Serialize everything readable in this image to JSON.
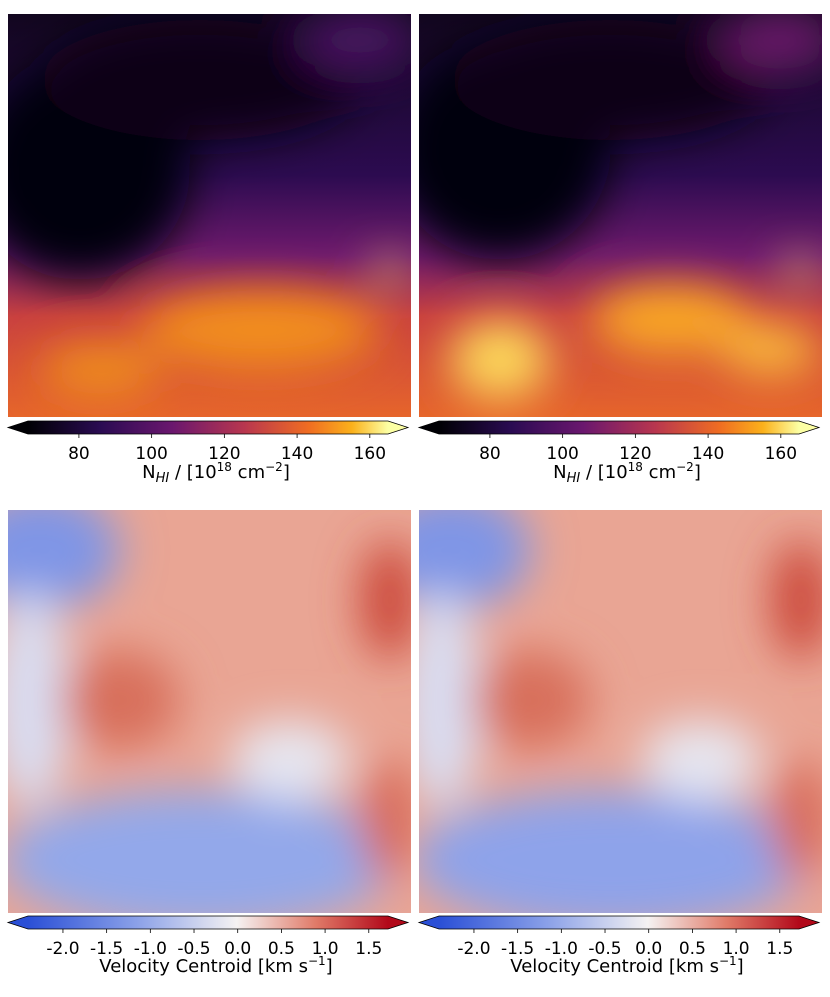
{
  "chart_data": [
    {
      "type": "heatmap",
      "xlim": [
        66,
        165
      ],
      "xticks": [
        80,
        100,
        120,
        140,
        160
      ],
      "xlabel": [
        "N",
        "HI",
        " / [10",
        "18",
        " cm",
        "−2",
        "]"
      ]
    },
    {
      "type": "heatmap",
      "xlim": [
        66,
        165
      ],
      "xticks": [
        80,
        100,
        120,
        140,
        160
      ],
      "xlabel": [
        "N",
        "HI",
        " / [10",
        "18",
        " cm",
        "−2",
        "]"
      ]
    },
    {
      "type": "heatmap",
      "xlim": [
        -2.4,
        1.72
      ],
      "xticks": [
        {
          "value": -2,
          "label": "-2.0"
        },
        -1.5,
        {
          "value": -1,
          "label": "-1.0"
        },
        -0.5,
        {
          "value": 0,
          "label": "0.0"
        },
        0.5,
        {
          "value": 1,
          "label": "1.0"
        },
        1.5
      ],
      "xlabel": [
        "Velocity Centroid [km s",
        "−1",
        "]"
      ]
    },
    {
      "type": "heatmap",
      "xlim": [
        -2.4,
        1.72
      ],
      "xticks": [
        {
          "value": -2,
          "label": "-2.0"
        },
        -1.5,
        {
          "value": -1,
          "label": "-1.0"
        },
        -0.5,
        {
          "value": 0,
          "label": "0.0"
        },
        0.5,
        {
          "value": 1,
          "label": "1.0"
        },
        1.5
      ],
      "xlabel": [
        "Velocity Centroid [km s",
        "−1",
        "]"
      ]
    }
  ]
}
